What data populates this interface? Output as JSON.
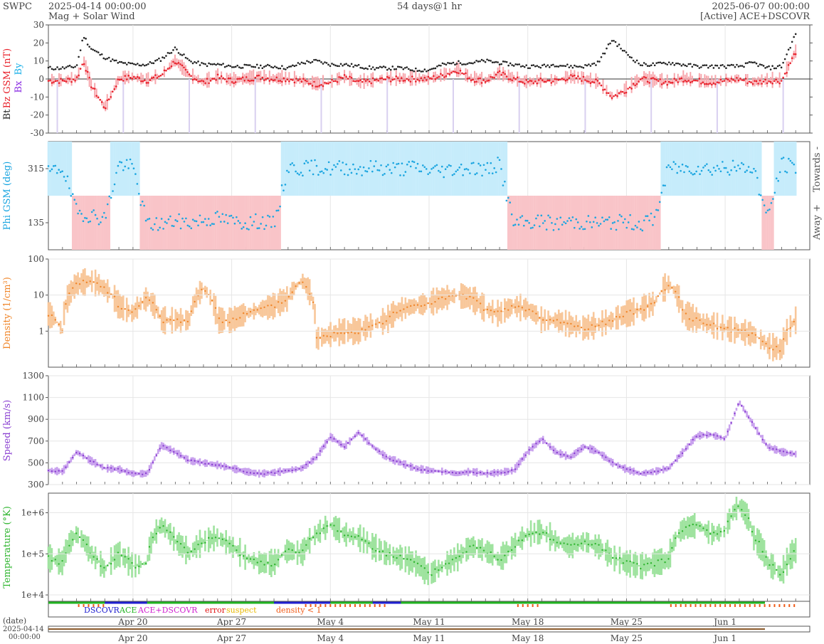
{
  "header": {
    "brand": "SWPC",
    "start": "2025-04-14 00:00:00",
    "subtitle": "Mag + Solar Wind",
    "span": "54 days@1 hr",
    "end": "2025-06-07 00:00:00",
    "source": "[Active] ACE+DSCOVR"
  },
  "colors": {
    "bt": "#222222",
    "bz": "#e8202a",
    "bz_fill": "#f7a6ac",
    "bx": "#8a2be2",
    "by": "#1ab0e8",
    "phi": "#1aa5e0",
    "phi_toward": "#c6ecfb",
    "phi_away": "#f9c4c8",
    "density": "#f0862a",
    "density_fill": "#f8c79a",
    "speed": "#8a3fd1",
    "speed_fill": "#c9a2ee",
    "temperature": "#2fb52f",
    "temperature_fill": "#9fe39f",
    "frame": "#555555",
    "grid": "#e6e6e6"
  },
  "legend": {
    "dscovr": "DSCOVR",
    "ace": "ACE",
    "ace_dscovr": "ACE+DSCOVR",
    "error": "error",
    "suspect": "suspect",
    "density_lt1": "density < 1"
  },
  "footer": {
    "date_label": "(date)",
    "start_date": "2025-04-14",
    "start_time": "00:00:00"
  },
  "chart_data": [
    {
      "type": "line",
      "panel": "mag",
      "ylabel_bt": "Bt",
      "ylabel_bz": "Bz GSM (nT)",
      "ylabel_bx": "Bx",
      "ylabel_by": "By",
      "ylim": [
        -30,
        30
      ],
      "yticks": [
        "30",
        "20",
        "10",
        "0",
        "-10",
        "-20",
        "-30"
      ],
      "x_days": [
        0,
        1,
        2,
        2.5,
        3,
        4,
        5,
        6,
        7,
        8,
        9,
        10,
        11,
        12,
        13,
        14,
        15,
        16,
        17,
        18,
        19,
        20,
        21,
        22,
        23,
        24,
        25,
        26,
        27,
        28,
        29,
        30,
        31,
        32,
        33,
        34,
        35,
        36,
        37,
        38,
        39,
        40,
        41,
        42,
        43,
        44,
        45,
        46,
        47,
        48,
        49,
        50,
        51,
        52,
        53
      ],
      "series": [
        {
          "name": "Bt",
          "values": [
            6,
            6,
            7,
            24,
            17,
            12,
            9,
            8,
            8,
            11,
            17,
            10,
            8,
            8,
            7,
            7,
            7,
            7,
            6,
            9,
            10,
            8,
            8,
            7,
            6,
            6,
            6,
            5,
            5,
            8,
            9,
            9,
            10,
            9,
            8,
            7,
            7,
            8,
            7,
            7,
            9,
            22,
            14,
            8,
            8,
            9,
            8,
            7,
            7,
            7,
            7,
            9,
            6,
            7,
            25
          ]
        },
        {
          "name": "Bz",
          "values": [
            -1,
            -1,
            0,
            10,
            -3,
            -16,
            0,
            1,
            -1,
            2,
            10,
            2,
            -2,
            1,
            -1,
            0,
            1,
            0,
            0,
            -1,
            -3,
            -2,
            1,
            -2,
            -1,
            0,
            0,
            0,
            0,
            2,
            5,
            0,
            -1,
            3,
            0,
            -2,
            -1,
            -1,
            1,
            0,
            -2,
            -10,
            -6,
            0,
            -1,
            -2,
            0,
            -1,
            -2,
            -1,
            0,
            -2,
            -1,
            -1,
            15
          ]
        }
      ]
    },
    {
      "type": "scatter",
      "panel": "phi",
      "ylabel": "Phi GSM (deg)",
      "yticks": [
        "315",
        "135"
      ],
      "right_labels": [
        "Towards -",
        "Away +"
      ],
      "ylim": [
        45,
        405
      ],
      "x_days": [
        0,
        1,
        2,
        3,
        4,
        5,
        6,
        7,
        8,
        9,
        10,
        11,
        12,
        13,
        14,
        15,
        16,
        17,
        18,
        19,
        20,
        21,
        22,
        23,
        24,
        25,
        26,
        27,
        28,
        29,
        30,
        31,
        32,
        33,
        34,
        35,
        36,
        37,
        38,
        39,
        40,
        41,
        42,
        43,
        44,
        45,
        46,
        47,
        48,
        49,
        50,
        51,
        52,
        53
      ],
      "values": [
        300,
        320,
        170,
        160,
        150,
        330,
        320,
        130,
        130,
        140,
        135,
        145,
        150,
        140,
        135,
        140,
        130,
        320,
        315,
        320,
        315,
        320,
        315,
        320,
        315,
        315,
        320,
        310,
        310,
        315,
        320,
        310,
        330,
        130,
        135,
        140,
        130,
        140,
        135,
        135,
        135,
        140,
        130,
        150,
        320,
        315,
        320,
        315,
        320,
        315,
        320,
        150,
        330,
        320
      ]
    },
    {
      "type": "line",
      "panel": "density",
      "ylabel": "Density (1/cm³)",
      "ylim": [
        0.1,
        100
      ],
      "scale": "log",
      "yticks": [
        "100",
        "10",
        "1"
      ],
      "x_days": [
        0,
        1,
        2,
        3,
        4,
        5,
        6,
        7,
        8,
        9,
        10,
        11,
        12,
        13,
        14,
        15,
        16,
        17,
        18,
        19,
        20,
        21,
        22,
        23,
        24,
        25,
        26,
        27,
        28,
        29,
        30,
        31,
        32,
        33,
        34,
        35,
        36,
        37,
        38,
        39,
        40,
        41,
        42,
        43,
        44,
        45,
        46,
        47,
        48,
        49,
        50,
        51,
        52,
        53
      ],
      "values": [
        3,
        1,
        20,
        25,
        15,
        5,
        3,
        8,
        2,
        2,
        2,
        15,
        2,
        2,
        3,
        4,
        5,
        8,
        25,
        0.6,
        0.8,
        1,
        1,
        1.5,
        2,
        4,
        5,
        6,
        8,
        10,
        8,
        4,
        3,
        5,
        4,
        2,
        2,
        1.5,
        1.2,
        1.5,
        2,
        3,
        4,
        6,
        20,
        3,
        2,
        1.5,
        1.2,
        1,
        0.8,
        0.4,
        0.3,
        2
      ]
    },
    {
      "type": "line",
      "panel": "speed",
      "ylabel": "Speed (km/s)",
      "ylim": [
        300,
        1300
      ],
      "yticks": [
        "1300",
        "1100",
        "900",
        "700",
        "500",
        "300"
      ],
      "x_days": [
        0,
        1,
        2,
        3,
        4,
        5,
        6,
        7,
        8,
        9,
        10,
        11,
        12,
        13,
        14,
        15,
        16,
        17,
        18,
        19,
        20,
        21,
        22,
        23,
        24,
        25,
        26,
        27,
        28,
        29,
        30,
        31,
        32,
        33,
        34,
        35,
        36,
        37,
        38,
        39,
        40,
        41,
        42,
        43,
        44,
        45,
        46,
        47,
        48,
        49,
        50,
        51,
        52,
        53
      ],
      "values": [
        430,
        420,
        600,
        520,
        450,
        440,
        400,
        400,
        660,
        600,
        520,
        500,
        480,
        450,
        420,
        400,
        410,
        430,
        450,
        550,
        740,
        650,
        780,
        650,
        550,
        500,
        450,
        430,
        420,
        400,
        420,
        400,
        410,
        430,
        600,
        720,
        600,
        550,
        650,
        600,
        500,
        440,
        400,
        420,
        450,
        600,
        750,
        760,
        720,
        1060,
        850,
        650,
        600,
        580
      ]
    },
    {
      "type": "line",
      "panel": "temperature",
      "ylabel": "Temperature (°K)",
      "ylim": [
        7000,
        3000000
      ],
      "scale": "log",
      "yticks": [
        "1e+6",
        "1e+5",
        "1e+4"
      ],
      "x_days": [
        0,
        1,
        2,
        3,
        4,
        5,
        6,
        7,
        8,
        9,
        10,
        11,
        12,
        13,
        14,
        15,
        16,
        17,
        18,
        19,
        20,
        21,
        22,
        23,
        24,
        25,
        26,
        27,
        28,
        29,
        30,
        31,
        32,
        33,
        34,
        35,
        36,
        37,
        38,
        39,
        40,
        41,
        42,
        43,
        44,
        45,
        46,
        47,
        48,
        49,
        50,
        51,
        52,
        53
      ],
      "values": [
        80000,
        60000,
        300000,
        100000,
        40000,
        100000,
        50000,
        60000,
        500000,
        200000,
        100000,
        200000,
        250000,
        150000,
        80000,
        60000,
        60000,
        120000,
        100000,
        300000,
        500000,
        300000,
        250000,
        150000,
        100000,
        80000,
        60000,
        30000,
        50000,
        80000,
        150000,
        120000,
        70000,
        150000,
        300000,
        350000,
        200000,
        150000,
        200000,
        150000,
        80000,
        60000,
        50000,
        60000,
        70000,
        400000,
        500000,
        300000,
        350000,
        1500000,
        250000,
        60000,
        30000,
        120000
      ]
    }
  ],
  "x_axis": {
    "labels": [
      "Apr 20",
      "Apr 27",
      "May 4",
      "May 11",
      "May 18",
      "May 25",
      "Jun 1"
    ],
    "label_days": [
      6,
      13,
      20,
      27,
      34,
      41,
      48
    ],
    "span_days": 54
  }
}
